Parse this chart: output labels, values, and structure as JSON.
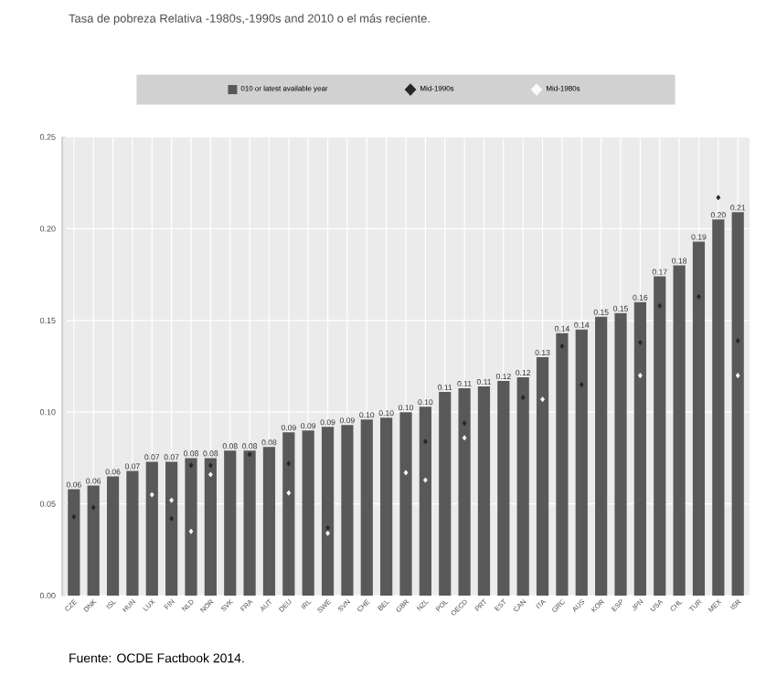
{
  "chart_data": {
    "type": "bar",
    "title": "Tasa de pobreza Relativa -1980s,-1990s and 2010 o el más reciente.",
    "categories": [
      "CZE",
      "DNK",
      "ISL",
      "HUN",
      "LUX",
      "FIN",
      "NLD",
      "NOR",
      "SVK",
      "FRA",
      "AUT",
      "DEU",
      "IRL",
      "SWE",
      "SVN",
      "CHE",
      "BEL",
      "GBR",
      "NZL",
      "POL",
      "OECD",
      "PRT",
      "EST",
      "CAN",
      "ITA",
      "GRC",
      "AUS",
      "KOR",
      "ESP",
      "JPN",
      "USA",
      "CHL",
      "TUR",
      "MEX",
      "ISR"
    ],
    "series": [
      {
        "name": "010 or latest available year",
        "color": "#595959",
        "values": [
          0.058,
          0.06,
          0.065,
          0.068,
          0.073,
          0.073,
          0.075,
          0.075,
          0.079,
          0.079,
          0.081,
          0.089,
          0.09,
          0.092,
          0.093,
          0.096,
          0.097,
          0.1,
          0.103,
          0.111,
          0.113,
          0.114,
          0.117,
          0.119,
          0.13,
          0.143,
          0.145,
          0.152,
          0.154,
          0.16,
          0.174,
          0.18,
          0.193,
          0.205,
          0.209
        ],
        "value_labels": [
          "0.06",
          "0.06",
          "0.06",
          "0.07",
          "0.07",
          "0.07",
          "0.08",
          "0.08",
          "0.08",
          "0.08",
          "0.08",
          "0.09",
          "0.09",
          "0.09",
          "0.09",
          "0.10",
          "0.10",
          "0.10",
          "0.10",
          "0.11",
          "0.11",
          "0.11",
          "0.12",
          "0.12",
          "0.13",
          "0.14",
          "0.14",
          "0.15",
          "0.15",
          "0.16",
          "0.17",
          "0.18",
          "0.19",
          "0.20",
          "0.21"
        ]
      },
      {
        "name": "Mid-1990s",
        "type": "scatter",
        "marker": "diamond",
        "color": "#262626",
        "values": [
          0.043,
          0.048,
          null,
          null,
          null,
          0.042,
          0.071,
          0.071,
          null,
          0.077,
          null,
          0.072,
          null,
          0.037,
          null,
          null,
          null,
          null,
          0.084,
          null,
          0.094,
          null,
          null,
          0.108,
          null,
          0.136,
          0.115,
          null,
          null,
          0.138,
          0.158,
          null,
          0.163,
          0.217,
          0.139
        ]
      },
      {
        "name": "Mid-1980s",
        "type": "scatter",
        "marker": "diamond",
        "color": "#fafafa",
        "values": [
          null,
          null,
          null,
          null,
          0.055,
          0.052,
          0.035,
          0.066,
          null,
          null,
          null,
          0.056,
          null,
          0.034,
          null,
          null,
          null,
          0.067,
          0.063,
          null,
          0.086,
          null,
          null,
          null,
          0.107,
          null,
          null,
          null,
          null,
          0.12,
          null,
          null,
          null,
          null,
          0.12
        ]
      }
    ],
    "ylim": [
      0,
      0.25
    ],
    "yticks": [
      {
        "value": 0,
        "label": "0.00"
      },
      {
        "value": 0.05,
        "label": "0.05"
      },
      {
        "value": 0.1,
        "label": "0.10"
      },
      {
        "value": 0.15,
        "label": "0.15"
      },
      {
        "value": 0.2,
        "label": "0.20"
      },
      {
        "value": 0.25,
        "label": "0.25"
      }
    ],
    "grid": true,
    "legend": "top",
    "annotations": [
      "Fuente: OCDE Factbook 2014."
    ]
  }
}
